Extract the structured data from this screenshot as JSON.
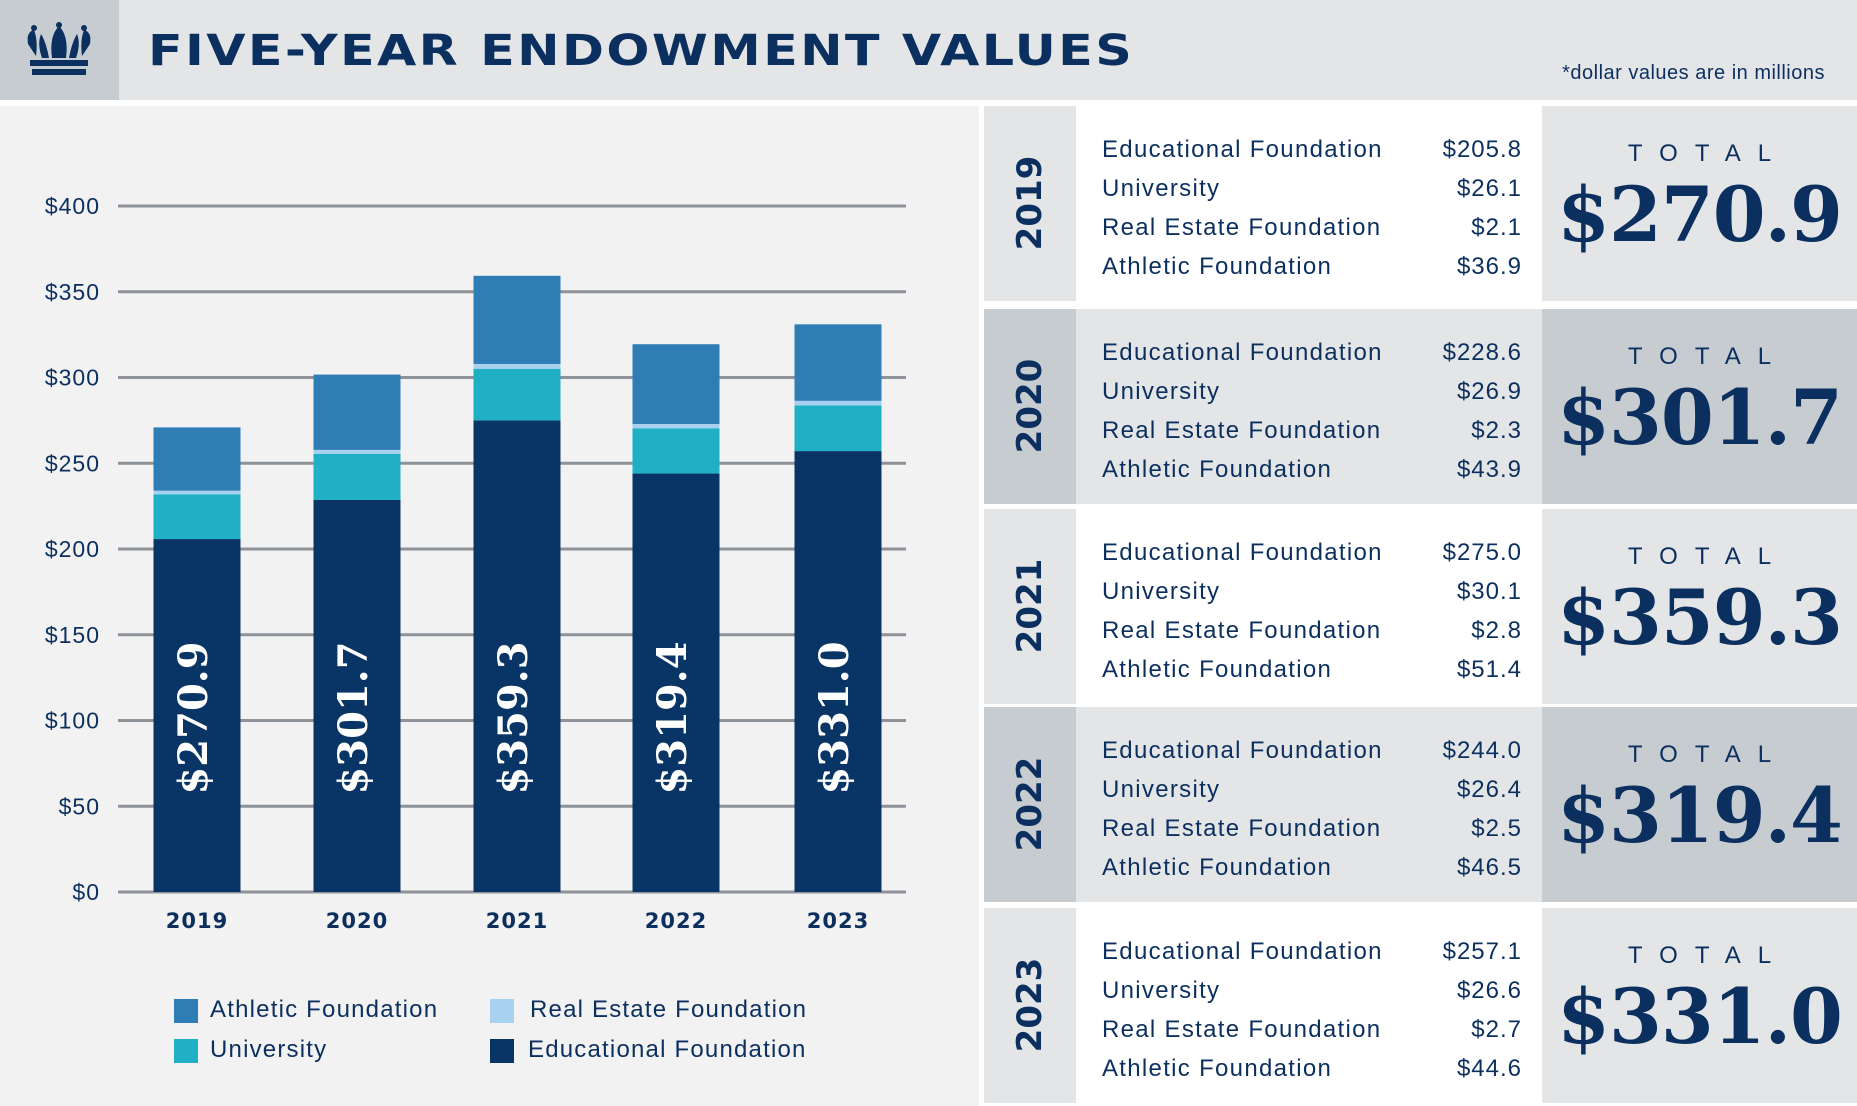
{
  "header": {
    "title": "FIVE-YEAR ENDOWMENT VALUES",
    "note": "*dollar values are in millions",
    "logo": "crown-icon"
  },
  "colors": {
    "navy": "#0b2f5e",
    "athletic": "#2f7db5",
    "real_estate": "#a7d1ee",
    "university": "#1fb0c6",
    "educational": "#083565",
    "header_bg": "#e3e5e7",
    "panel_bg": "#f2f2f2"
  },
  "chart_data": {
    "type": "bar",
    "stacked": true,
    "categories": [
      "2019",
      "2020",
      "2021",
      "2022",
      "2023"
    ],
    "series": [
      {
        "name": "Educational Foundation",
        "values": [
          205.8,
          228.6,
          275.0,
          244.0,
          257.1
        ]
      },
      {
        "name": "University",
        "values": [
          26.1,
          26.9,
          30.1,
          26.4,
          26.6
        ]
      },
      {
        "name": "Real Estate Foundation",
        "values": [
          2.1,
          2.3,
          2.8,
          2.5,
          2.7
        ]
      },
      {
        "name": "Athletic Foundation",
        "values": [
          36.9,
          43.9,
          51.4,
          46.5,
          44.6
        ]
      }
    ],
    "bar_labels": [
      "$270.9",
      "$301.7",
      "$359.3",
      "$319.4",
      "$331.0"
    ],
    "yticks": [
      "$0",
      "$50",
      "$100",
      "$150",
      "$200",
      "$250",
      "$300",
      "$350",
      "$400"
    ],
    "ylim": [
      0,
      400
    ],
    "grid": true,
    "legend_position": "bottom",
    "legend": [
      "Athletic Foundation",
      "Real Estate Foundation",
      "University",
      "Educational Foundation"
    ]
  },
  "table": {
    "total_label": "TOTAL",
    "rows": [
      {
        "year": "2019",
        "items": [
          {
            "label": "Educational Foundation",
            "value": "$205.8"
          },
          {
            "label": "University",
            "value": "$26.1"
          },
          {
            "label": "Real Estate Foundation",
            "value": "$2.1"
          },
          {
            "label": "Athletic Foundation",
            "value": "$36.9"
          }
        ],
        "total": "$270.9"
      },
      {
        "year": "2020",
        "items": [
          {
            "label": "Educational Foundation",
            "value": "$228.6"
          },
          {
            "label": "University",
            "value": "$26.9"
          },
          {
            "label": "Real Estate Foundation",
            "value": "$2.3"
          },
          {
            "label": "Athletic Foundation",
            "value": "$43.9"
          }
        ],
        "total": "$301.7"
      },
      {
        "year": "2021",
        "items": [
          {
            "label": "Educational Foundation",
            "value": "$275.0"
          },
          {
            "label": "University",
            "value": "$30.1"
          },
          {
            "label": "Real Estate Foundation",
            "value": "$2.8"
          },
          {
            "label": "Athletic Foundation",
            "value": "$51.4"
          }
        ],
        "total": "$359.3"
      },
      {
        "year": "2022",
        "items": [
          {
            "label": "Educational Foundation",
            "value": "$244.0"
          },
          {
            "label": "University",
            "value": "$26.4"
          },
          {
            "label": "Real Estate Foundation",
            "value": "$2.5"
          },
          {
            "label": "Athletic Foundation",
            "value": "$46.5"
          }
        ],
        "total": "$319.4"
      },
      {
        "year": "2023",
        "items": [
          {
            "label": "Educational Foundation",
            "value": "$257.1"
          },
          {
            "label": "University",
            "value": "$26.6"
          },
          {
            "label": "Real Estate Foundation",
            "value": "$2.7"
          },
          {
            "label": "Athletic Foundation",
            "value": "$44.6"
          }
        ],
        "total": "$331.0"
      }
    ]
  }
}
